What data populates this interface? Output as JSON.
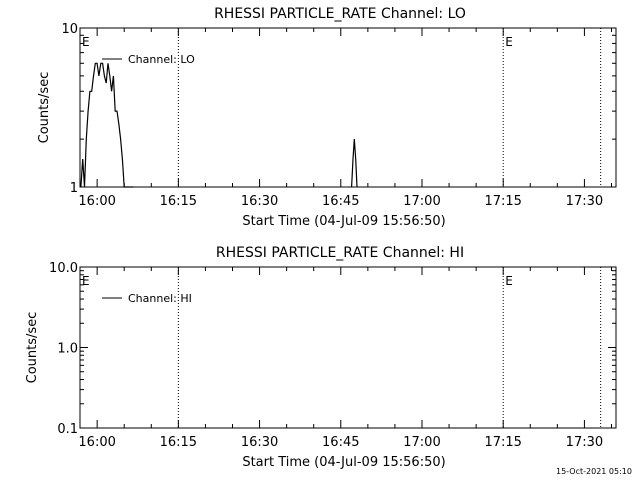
{
  "footer_timestamp": "15-Oct-2021 05:10",
  "chart_data": [
    {
      "type": "line",
      "title": "RHESSI PARTICLE_RATE Channel: LO",
      "xlabel": "Start Time (04-Jul-09 15:56:50)",
      "ylabel": "Counts/sec",
      "y_scale": "log",
      "xlim": [
        "15:56:50",
        "17:35:50"
      ],
      "ylim": [
        1,
        10
      ],
      "x_ticks": [
        "16:00",
        "16:15",
        "16:30",
        "16:45",
        "17:00",
        "17:15",
        "17:30"
      ],
      "y_ticks": [
        "1",
        "10"
      ],
      "legend": "top-left",
      "vlines": [
        "16:15",
        "17:15",
        "17:33"
      ],
      "event_markers": [
        {
          "time": "15:56:50",
          "label": "E"
        },
        {
          "time": "17:15",
          "label": "E"
        }
      ],
      "series": [
        {
          "name": "Channel: LO",
          "x": [
            "15:57:00",
            "15:57:20",
            "15:57:40",
            "15:58:00",
            "15:58:20",
            "15:58:40",
            "15:59:00",
            "15:59:20",
            "15:59:40",
            "16:00:00",
            "16:00:20",
            "16:00:40",
            "16:01:00",
            "16:01:20",
            "16:01:40",
            "16:02:00",
            "16:02:20",
            "16:02:40",
            "16:03:00",
            "16:03:20",
            "16:03:40",
            "16:04:00",
            "16:04:20",
            "16:04:40",
            "16:05:00",
            "16:05:20",
            "16:05:40",
            "16:06:00",
            "16:06:20",
            "16:06:40",
            "16:47:00",
            "16:47:15",
            "16:47:30",
            "16:47:45",
            "16:48:00"
          ],
          "y": [
            1,
            1.5,
            1,
            2,
            3,
            4,
            4,
            5,
            6,
            6,
            5,
            6,
            6,
            5,
            4.5,
            6,
            5,
            4,
            5,
            3,
            3,
            2.5,
            2,
            1.5,
            1,
            1,
            1,
            1,
            1,
            1,
            1,
            1.5,
            2,
            1.5,
            1
          ]
        }
      ]
    },
    {
      "type": "line",
      "title": "RHESSI PARTICLE_RATE Channel: HI",
      "xlabel": "Start Time (04-Jul-09 15:56:50)",
      "ylabel": "Counts/sec",
      "y_scale": "log",
      "xlim": [
        "15:56:50",
        "17:35:50"
      ],
      "ylim": [
        0.1,
        10
      ],
      "x_ticks": [
        "16:00",
        "16:15",
        "16:30",
        "16:45",
        "17:00",
        "17:15",
        "17:30"
      ],
      "y_ticks": [
        "0.1",
        "1.0",
        "10.0"
      ],
      "legend": "top-left",
      "vlines": [
        "16:15",
        "17:15",
        "17:33"
      ],
      "event_markers": [
        {
          "time": "15:56:50",
          "label": "E"
        },
        {
          "time": "17:15",
          "label": "E"
        }
      ],
      "series": [
        {
          "name": "Channel: HI",
          "x": [],
          "y": []
        }
      ]
    }
  ]
}
